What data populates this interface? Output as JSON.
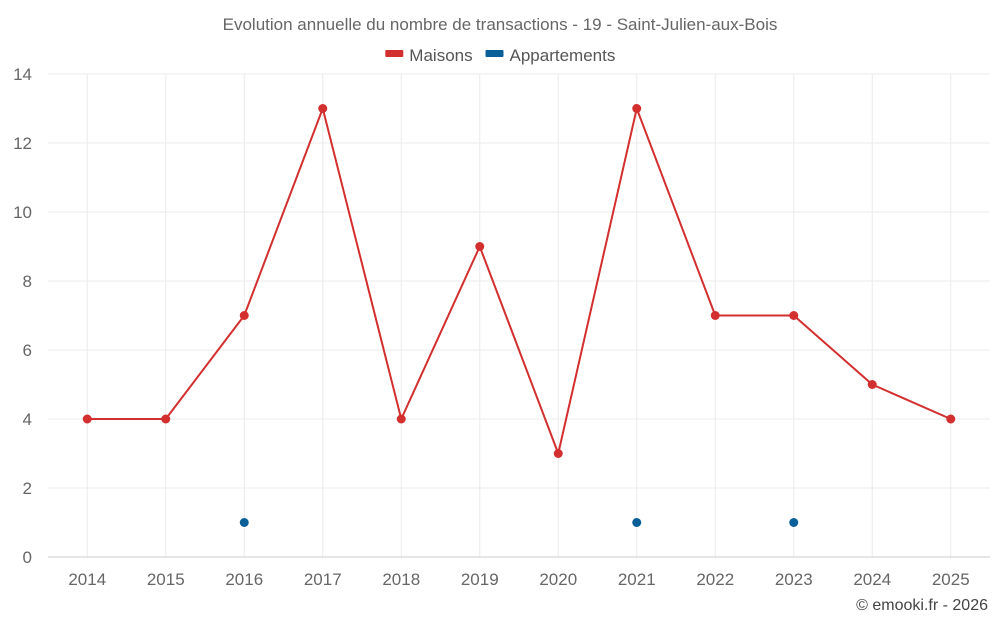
{
  "chart_data": {
    "type": "line",
    "title": "Evolution annuelle du nombre de transactions - 19 - Saint-Julien-aux-Bois",
    "categories": [
      "2014",
      "2015",
      "2016",
      "2017",
      "2018",
      "2019",
      "2020",
      "2021",
      "2022",
      "2023",
      "2024",
      "2025"
    ],
    "series": [
      {
        "name": "Maisons",
        "color": "#d32f2f",
        "values": [
          4,
          4,
          7,
          13,
          4,
          9,
          3,
          13,
          7,
          7,
          5,
          4
        ]
      },
      {
        "name": "Appartements",
        "color": "#0b5f99",
        "values": [
          null,
          null,
          1,
          null,
          null,
          null,
          null,
          1,
          null,
          1,
          null,
          null
        ]
      }
    ],
    "ylim": [
      0,
      14
    ],
    "yticks": [
      0,
      2,
      4,
      6,
      8,
      10,
      12,
      14
    ],
    "grid": true,
    "legend_position": "top-center",
    "xlabel": "",
    "ylabel": ""
  },
  "credit": "© emooki.fr - 2026"
}
